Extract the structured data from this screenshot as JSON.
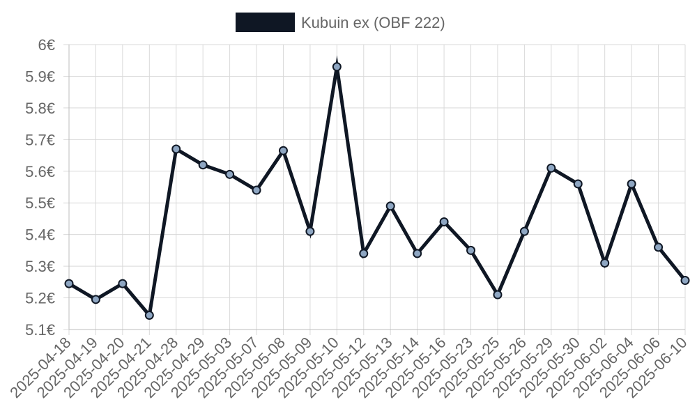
{
  "chart_data": {
    "type": "line",
    "title": "",
    "xlabel": "",
    "ylabel": "",
    "y_unit_suffix": "€",
    "ylim": [
      5.1,
      6.0
    ],
    "yticks": [
      5.1,
      5.2,
      5.3,
      5.4,
      5.5,
      5.6,
      5.7,
      5.8,
      5.9,
      6.0
    ],
    "grid": true,
    "legend_position": "top",
    "categories": [
      "2025-04-18",
      "2025-04-19",
      "2025-04-20",
      "2025-04-21",
      "2025-04-28",
      "2025-04-29",
      "2025-05-03",
      "2025-05-07",
      "2025-05-08",
      "2025-05-09",
      "2025-05-10",
      "2025-05-12",
      "2025-05-13",
      "2025-05-14",
      "2025-05-16",
      "2025-05-23",
      "2025-05-25",
      "2025-05-26",
      "2025-05-29",
      "2025-05-30",
      "2025-06-02",
      "2025-06-04",
      "2025-06-06",
      "2025-06-10"
    ],
    "series": [
      {
        "name": "Kubuin ex (OBF 222)",
        "color": "#0f1724",
        "marker_color": "#8ea6c2",
        "values": [
          5.245,
          5.195,
          5.245,
          5.145,
          5.67,
          5.62,
          5.59,
          5.54,
          5.665,
          5.41,
          5.93,
          5.34,
          5.49,
          5.34,
          5.44,
          5.35,
          5.21,
          5.41,
          5.61,
          5.56,
          5.31,
          5.56,
          5.36,
          5.255
        ]
      }
    ]
  }
}
